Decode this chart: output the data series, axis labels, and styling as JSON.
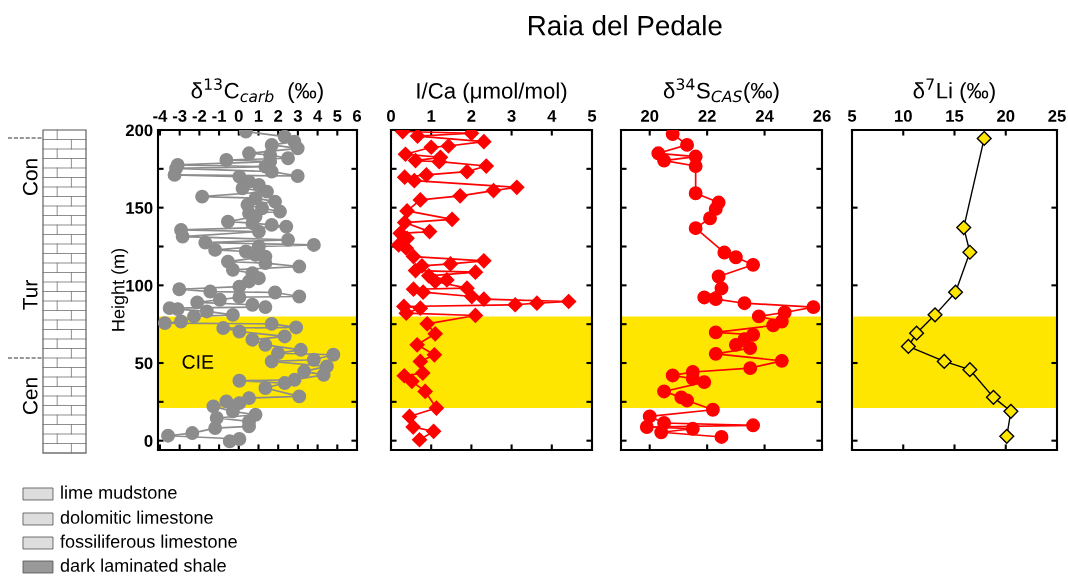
{
  "chart_data": [
    {
      "type": "line",
      "xlabel": "δ$^{13}$C$_{carb}$  (‰)",
      "ylabel": "Height (m)",
      "xlim": [
        -4.1,
        6
      ],
      "xticks": [
        -4,
        -3,
        -2,
        -1,
        0,
        1,
        2,
        3,
        4,
        5,
        6
      ],
      "ylim": [
        -6,
        200
      ],
      "yticks": [
        0,
        {
          "value": 25,
          "label": null
        },
        50,
        {
          "value": 75,
          "label": null
        },
        100,
        {
          "value": 125,
          "label": null
        },
        150,
        {
          "value": 175,
          "label": null
        },
        200
      ],
      "marker": "circle",
      "line_style": "solid",
      "grid": false,
      "legend": false,
      "bands": [
        {
          "axis": "y",
          "from": 21,
          "to": 80,
          "color": "#ffe600"
        }
      ],
      "annotations": [
        "Con",
        "Tur",
        "Cen",
        "lime mudstone",
        "dolomitic limestone",
        "fossiliferous limestone",
        "dark laminated shale",
        "CIE"
      ],
      "series": [
        {
          "color": "#8c8c8c",
          "x": [
            0.36,
            2.33,
            2.82,
            1.67,
            2.99,
            0.52,
            1.59,
            2.5,
            -0.63,
            1.59,
            -3.1,
            1.35,
            -3.18,
            1.67,
            2.99,
            -3.26,
            0.03,
            0.52,
            1.02,
            0.19,
            1.43,
            -1.86,
            0.85,
            1.84,
            0.44,
            1.18,
            2.09,
            0.52,
            0.85,
            -0.55,
            0.69,
            1.67,
            2.41,
            -2.93,
            1.02,
            -2.85,
            2.5,
            -1.7,
            3.81,
            1.02,
            -1.2,
            0.36,
            0.85,
            1.35,
            -0.55,
            1.35,
            3.07,
            -0.3,
            0.69,
            1.02,
            0.52,
            0.03,
            -3.02,
            -1.45,
            1.84,
            3.07,
            0.03,
            -0.96,
            -2.11,
            0.69,
            1.35,
            -3.51,
            -3.1,
            -1.62,
            -0.3,
            -2.27,
            -2.93,
            -3.75,
            1.67,
            2.91,
            -0.79,
            0.03,
            2.33,
            0.69,
            1.35,
            3.15,
            1.99,
            4.8,
            3.81,
            1.67,
            4.47,
            3.32,
            4.31,
            2.83,
            0.03,
            2.33,
            1.35,
            3.07,
            0.52,
            -0.63,
            0.03,
            -1.29,
            -0.3,
            0.85,
            -1.12,
            0.52,
            0.52,
            -1.2,
            -2.36,
            -3.59,
            0.03,
            -0.46
          ],
          "values": [
            199,
            195.7,
            192.5,
            190.4,
            188.2,
            185,
            183.9,
            181.8,
            180.7,
            179.6,
            177.5,
            176.4,
            175.3,
            173.2,
            170.4,
            171.1,
            170,
            166.8,
            164.6,
            162.5,
            160.3,
            157.1,
            156.1,
            153.9,
            151.8,
            149.6,
            147.5,
            146.4,
            144.3,
            141,
            140,
            138.9,
            137.8,
            135.7,
            134.6,
            131.4,
            129.3,
            127.5,
            126,
            125,
            122.8,
            121.8,
            119.6,
            118.5,
            115.3,
            114.3,
            112.1,
            110,
            107.8,
            104.6,
            102.5,
            99.2,
            97.5,
            96,
            95.4,
            92.8,
            92.4,
            90.7,
            89,
            87.5,
            86,
            85.3,
            84.7,
            83.2,
            81,
            80,
            76.7,
            75.7,
            75.2,
            72.9,
            72.5,
            70.3,
            67.1,
            65,
            61.7,
            58.5,
            56.4,
            55.3,
            52.1,
            51,
            47.8,
            44.6,
            42.4,
            39.2,
            38.6,
            37.1,
            33.9,
            28.5,
            27.4,
            25.3,
            24.2,
            22.1,
            18.9,
            16.7,
            14.6,
            12.4,
            9.2,
            8.1,
            4.9,
            3.2,
            1.1,
            -0.4
          ]
        }
      ]
    },
    {
      "type": "line",
      "title": "Raia del Pedale",
      "xlabel": "I/Ca (μmol/mol)",
      "tick_labels": "x",
      "xlim": [
        0,
        5
      ],
      "xticks": [
        0,
        1,
        2,
        3,
        4,
        5
      ],
      "ylim": [
        -6,
        200
      ],
      "yticks": [
        {
          "value": 0,
          "label": null
        },
        {
          "value": 25,
          "label": null
        },
        {
          "value": 50,
          "label": null
        },
        {
          "value": 75,
          "label": null
        },
        {
          "value": 100,
          "label": null
        },
        {
          "value": 125,
          "label": null
        },
        {
          "value": 150,
          "label": null
        },
        {
          "value": 175,
          "label": null
        },
        {
          "value": 200,
          "label": null
        }
      ],
      "marker": "diamond",
      "line_style": "solid",
      "grid": false,
      "legend": false,
      "bands": [
        {
          "axis": "y",
          "from": 21,
          "to": 80,
          "color": "#ffe600"
        }
      ],
      "series": [
        {
          "color": "#ff0000",
          "x": [
            0.29,
            2.0,
            0.66,
            2.31,
            1.43,
            1.0,
            0.36,
            1.23,
            0.61,
            1.2,
            2.37,
            1.89,
            0.88,
            0.34,
            0.58,
            3.13,
            2.55,
            1.72,
            0.73,
            0.4,
            1.52,
            0.34,
            0.96,
            0.23,
            0.4,
            0.19,
            0.38,
            0.56,
            2.31,
            1.48,
            0.77,
            0.61,
            2.1,
            0.94,
            1.39,
            1.1,
            1.89,
            0.56,
            0.8,
            2.01,
            2.31,
            4.42,
            3.63,
            3.09,
            0.32,
            0.73,
            0.38,
            2.1,
            0.9,
            1.1,
            0.65,
            1.08,
            0.73,
            0.79,
            0.33,
            0.52,
            0.85,
            1.13,
            0.46,
            0.55,
            1.06,
            0.71
          ],
          "values": [
            199,
            197.9,
            196.1,
            192.5,
            189.7,
            188.9,
            184.4,
            182.4,
            180.3,
            179.6,
            176.8,
            173.2,
            171.1,
            169.6,
            167.4,
            163.1,
            161,
            157.6,
            155,
            147.9,
            142.5,
            140.4,
            134.6,
            133.5,
            130.3,
            126,
            123.9,
            118.5,
            115.8,
            113.8,
            112.5,
            109.5,
            108.5,
            106.1,
            103.5,
            102.5,
            98.2,
            97.5,
            95.6,
            92.8,
            91.1,
            89.6,
            88.5,
            87.5,
            86.4,
            85.3,
            82.1,
            80.6,
            75.2,
            68.8,
            61.7,
            55.3,
            51,
            43.5,
            41.8,
            38.2,
            31.7,
            21,
            15.6,
            8.8,
            6,
            0.6
          ]
        }
      ]
    },
    {
      "type": "line",
      "xlabel": "δ$^{34}$S$_{CAS}$(‰)",
      "tick_labels": "x",
      "xlim": [
        19,
        26
      ],
      "xticks": [
        20,
        22,
        24,
        26
      ],
      "ylim": [
        -6,
        200
      ],
      "yticks": [
        {
          "value": 0,
          "label": null
        },
        {
          "value": 25,
          "label": null
        },
        {
          "value": 50,
          "label": null
        },
        {
          "value": 75,
          "label": null
        },
        {
          "value": 100,
          "label": null
        },
        {
          "value": 125,
          "label": null
        },
        {
          "value": 150,
          "label": null
        },
        {
          "value": 175,
          "label": null
        },
        {
          "value": 200,
          "label": null
        }
      ],
      "marker": "circle",
      "line_style": "solid",
      "grid": false,
      "legend": false,
      "bands": [
        {
          "axis": "y",
          "from": 21,
          "to": 80,
          "color": "#ffe600"
        }
      ],
      "series": [
        {
          "color": "#ff0000",
          "x": [
            20.8,
            21.3,
            20.3,
            21.6,
            20.5,
            21.6,
            21.6,
            22.4,
            22.3,
            22.1,
            21.6,
            22.6,
            23.0,
            23.6,
            22.4,
            22.5,
            21.9,
            22.3,
            23.3,
            25.7,
            24.7,
            23.8,
            24.6,
            24.3,
            22.3,
            23.6,
            23.3,
            23.0,
            23.5,
            22.3,
            24.6,
            23.5,
            21.5,
            20.8,
            21.5,
            21.9,
            20.5,
            21.1,
            21.3,
            22.2,
            20.0,
            20.5,
            23.6,
            19.9,
            21.5,
            20.4,
            22.5
          ],
          "values": [
            197.4,
            190.4,
            185,
            182.9,
            180.3,
            176.8,
            159.3,
            153.3,
            149.2,
            143.2,
            136.8,
            121.1,
            118.1,
            113.2,
            105.7,
            98,
            92.2,
            91.1,
            88.5,
            86,
            82.5,
            80,
            76.7,
            74.2,
            69.7,
            68.2,
            65.4,
            61.7,
            59.6,
            55.9,
            51.4,
            46.7,
            44.2,
            42,
            39.9,
            37.7,
            31.7,
            27.9,
            25.9,
            19.9,
            15.6,
            11.4,
            9.9,
            8.8,
            7.7,
            5.4,
            2.4
          ]
        }
      ]
    },
    {
      "type": "line",
      "xlabel": "δ$^{7}$Li (‰)",
      "tick_labels": "x",
      "xlim": [
        5,
        25
      ],
      "xticks": [
        5,
        10,
        15,
        20,
        25
      ],
      "ylim": [
        -6,
        200
      ],
      "yticks": [
        {
          "value": 0,
          "label": null
        },
        {
          "value": 50,
          "label": null
        },
        {
          "value": 100,
          "label": null
        },
        {
          "value": 150,
          "label": null
        },
        {
          "value": 200,
          "label": null
        }
      ],
      "marker": "diamond",
      "line_style": "solid",
      "grid": false,
      "legend": false,
      "bands": [
        {
          "axis": "y",
          "from": 21,
          "to": 80,
          "color": "#ffe600"
        }
      ],
      "series": [
        {
          "color": "#ffe600",
          "x": [
            17.9,
            15.9,
            16.5,
            15.1,
            13.1,
            11.3,
            10.5,
            14.0,
            16.5,
            18.8,
            20.5,
            20.1
          ],
          "values": [
            194.6,
            137.2,
            121.3,
            95.6,
            81.0,
            69.2,
            60.7,
            51.0,
            45.7,
            27.9,
            18.9,
            2.8
          ]
        }
      ]
    }
  ]
}
